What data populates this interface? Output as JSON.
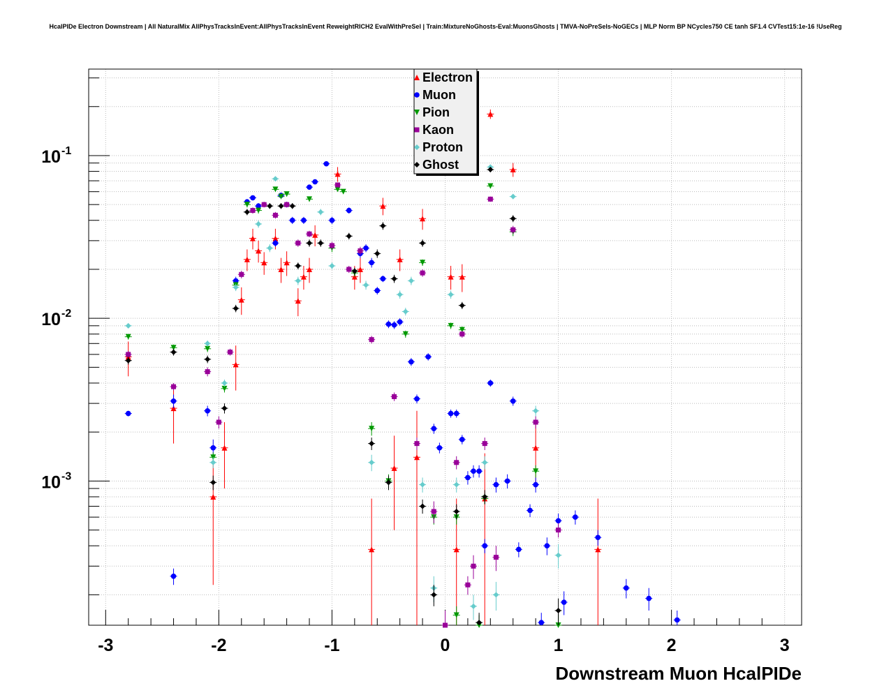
{
  "chart_data": {
    "type": "scatter",
    "title": "HcalPIDe Electron Downstream | All NaturalMix AllPhysTracksInEvent:AllPhysTracksInEvent ReweightRICH2 EvalWithPreSel | Train:MixtureNoGhosts-Eval:MuonsGhosts | TMVA-NoPreSels-NoGECs | MLP Norm BP NCycles750 CE tanh SF1.4 CVTest15:1e-16 !UseReg",
    "xlabel": "Downstream Muon HcalPIDe",
    "ylabel": "",
    "xlim": [
      -3.15,
      3.15
    ],
    "ylim": [
      0.00013,
      0.34
    ],
    "y_scale": "log",
    "grid": true,
    "legend_position": "top-center",
    "x_ticks": [
      "-3",
      "-2",
      "-1",
      "0",
      "1",
      "2",
      "3"
    ],
    "y_ticks": [
      "10^{-3}",
      "10^{-2}",
      "10^{-1}"
    ],
    "series": [
      {
        "name": "Electron",
        "color": "#ff0000",
        "marker": "triangle-up",
        "points": [
          [
            -2.8,
            0.0058,
            0.0014
          ],
          [
            -2.4,
            0.0028,
            0.0011
          ],
          [
            -2.05,
            0.0008,
            0.00057
          ],
          [
            -1.95,
            0.0016,
            0.0007
          ],
          [
            -1.85,
            0.0052,
            0.0016
          ],
          [
            -1.8,
            0.013,
            0.0025
          ],
          [
            -1.75,
            0.023,
            0.0035
          ],
          [
            -1.7,
            0.031,
            0.0045
          ],
          [
            -1.65,
            0.026,
            0.004
          ],
          [
            -1.6,
            0.022,
            0.0035
          ],
          [
            -1.5,
            0.031,
            0.0045
          ],
          [
            -1.45,
            0.02,
            0.0035
          ],
          [
            -1.4,
            0.022,
            0.0038
          ],
          [
            -1.3,
            0.0128,
            0.0025
          ],
          [
            -1.25,
            0.018,
            0.003
          ],
          [
            -1.2,
            0.02,
            0.0035
          ],
          [
            -1.15,
            0.0325,
            0.0048
          ],
          [
            -0.95,
            0.077,
            0.008
          ],
          [
            -0.8,
            0.018,
            0.003
          ],
          [
            -0.75,
            0.02,
            0.0035
          ],
          [
            -0.65,
            0.00038,
            0.0004
          ],
          [
            -0.55,
            0.049,
            0.006
          ],
          [
            -0.45,
            0.0012,
            0.0007
          ],
          [
            -0.4,
            0.023,
            0.0035
          ],
          [
            -0.25,
            0.0014,
            0.0013
          ],
          [
            -0.2,
            0.041,
            0.006
          ],
          [
            0.05,
            0.018,
            0.003
          ],
          [
            0.1,
            0.00038,
            0.0004
          ],
          [
            0.15,
            0.018,
            0.0035
          ],
          [
            0.35,
            0.00078,
            0.0007
          ],
          [
            0.4,
            0.18,
            0.012
          ],
          [
            0.6,
            0.082,
            0.008
          ],
          [
            0.8,
            0.0016,
            0.0007
          ],
          [
            1.35,
            0.00038,
            0.0004
          ]
        ]
      },
      {
        "name": "Muon",
        "color": "#0000ff",
        "marker": "circle",
        "points": [
          [
            -2.8,
            0.0026,
            0.0001
          ],
          [
            -2.4,
            0.00026,
            3e-05
          ],
          [
            -2.4,
            0.0031,
            0.0003
          ],
          [
            -2.1,
            0.0027,
            0.0002
          ],
          [
            -2.05,
            0.0016,
            0.0002
          ],
          [
            -1.85,
            0.017,
            0.001
          ],
          [
            -1.75,
            0.052,
            0.002
          ],
          [
            -1.7,
            0.055,
            0.002
          ],
          [
            -1.65,
            0.049,
            0.002
          ],
          [
            -1.5,
            0.029,
            0.0015
          ],
          [
            -1.45,
            0.057,
            0.002
          ],
          [
            -1.4,
            0.05,
            0.002
          ],
          [
            -1.35,
            0.04,
            0.002
          ],
          [
            -1.25,
            0.04,
            0.002
          ],
          [
            -1.2,
            0.064,
            0.002
          ],
          [
            -1.15,
            0.069,
            0.002
          ],
          [
            -1.05,
            0.089,
            0.003
          ],
          [
            -1.0,
            0.04,
            0.002
          ],
          [
            -0.85,
            0.046,
            0.002
          ],
          [
            -0.75,
            0.025,
            0.0015
          ],
          [
            -0.7,
            0.027,
            0.0015
          ],
          [
            -0.65,
            0.022,
            0.0015
          ],
          [
            -0.6,
            0.0148,
            0.0008
          ],
          [
            -0.55,
            0.0175,
            0.0008
          ],
          [
            -0.5,
            0.0092,
            0.0005
          ],
          [
            -0.45,
            0.0091,
            0.0005
          ],
          [
            -0.4,
            0.0095,
            0.0005
          ],
          [
            -0.3,
            0.0054,
            0.0003
          ],
          [
            -0.25,
            0.0032,
            0.0002
          ],
          [
            -0.15,
            0.0058,
            0.0003
          ],
          [
            -0.1,
            0.0021,
            0.00015
          ],
          [
            -0.05,
            0.0016,
            0.00012
          ],
          [
            0.05,
            0.0026,
            0.00015
          ],
          [
            0.1,
            0.0026,
            0.00015
          ],
          [
            0.15,
            0.0018,
            0.00012
          ],
          [
            0.2,
            0.00105,
            0.0001
          ],
          [
            0.25,
            0.00115,
            0.0001
          ],
          [
            0.3,
            0.00115,
            0.0001
          ],
          [
            0.35,
            0.0004,
            4e-05
          ],
          [
            0.4,
            0.004,
            0.0002
          ],
          [
            0.45,
            0.00095,
            0.0001
          ],
          [
            0.55,
            0.001,
            0.0001
          ],
          [
            0.6,
            0.0031,
            0.0002
          ],
          [
            0.65,
            0.00038,
            4e-05
          ],
          [
            0.75,
            0.00066,
            6e-05
          ],
          [
            0.8,
            0.00095,
            0.0001
          ],
          [
            0.85,
            0.000135,
            2e-05
          ],
          [
            0.9,
            0.0004,
            5e-05
          ],
          [
            1.0,
            0.00057,
            6e-05
          ],
          [
            1.05,
            0.00018,
            3e-05
          ],
          [
            1.15,
            0.0006,
            6e-05
          ],
          [
            1.35,
            0.00045,
            5e-05
          ],
          [
            1.6,
            0.00022,
            3e-05
          ],
          [
            1.8,
            0.00019,
            3e-05
          ],
          [
            2.05,
            0.00014,
            2e-05
          ]
        ]
      },
      {
        "name": "Pion",
        "color": "#009900",
        "marker": "triangle-down",
        "points": [
          [
            -2.8,
            0.0077,
            0.0003
          ],
          [
            -2.4,
            0.0066,
            0.0003
          ],
          [
            -2.1,
            0.0065,
            0.0003
          ],
          [
            -2.05,
            0.0014,
            0.0001
          ],
          [
            -1.95,
            0.0037,
            0.0002
          ],
          [
            -1.85,
            0.016,
            0.0008
          ],
          [
            -1.75,
            0.05,
            0.002
          ],
          [
            -1.65,
            0.046,
            0.002
          ],
          [
            -1.5,
            0.062,
            0.002
          ],
          [
            -1.45,
            0.056,
            0.002
          ],
          [
            -1.4,
            0.058,
            0.002
          ],
          [
            -1.2,
            0.054,
            0.002
          ],
          [
            -1.0,
            0.027,
            0.0015
          ],
          [
            -0.95,
            0.062,
            0.002
          ],
          [
            -0.9,
            0.06,
            0.002
          ],
          [
            -0.8,
            0.019,
            0.001
          ],
          [
            -0.65,
            0.0021,
            0.0002
          ],
          [
            -0.5,
            0.001,
            0.0001
          ],
          [
            -0.35,
            0.008,
            0.0004
          ],
          [
            -0.2,
            0.022,
            0.001
          ],
          [
            -0.1,
            0.0006,
            6e-05
          ],
          [
            0.05,
            0.009,
            0.0004
          ],
          [
            0.1,
            0.0006,
            6e-05
          ],
          [
            0.1,
            0.00015,
            2e-05
          ],
          [
            0.15,
            0.0085,
            0.0004
          ],
          [
            0.3,
            0.00013,
            2e-05
          ],
          [
            0.35,
            0.00078,
            6e-05
          ],
          [
            0.4,
            0.065,
            0.002
          ],
          [
            0.6,
            0.034,
            0.002
          ],
          [
            0.8,
            0.00115,
            0.0001
          ],
          [
            1.0,
            0.00013,
            2e-05
          ]
        ]
      },
      {
        "name": "Kaon",
        "color": "#990099",
        "marker": "square",
        "points": [
          [
            -2.8,
            0.006,
            0.0003
          ],
          [
            -2.4,
            0.0038,
            0.0002
          ],
          [
            -2.1,
            0.0047,
            0.0003
          ],
          [
            -2.0,
            0.0023,
            0.0002
          ],
          [
            -1.9,
            0.0062,
            0.0003
          ],
          [
            -1.8,
            0.0186,
            0.001
          ],
          [
            -1.7,
            0.046,
            0.002
          ],
          [
            -1.6,
            0.05,
            0.002
          ],
          [
            -1.5,
            0.043,
            0.002
          ],
          [
            -1.4,
            0.05,
            0.002
          ],
          [
            -1.3,
            0.029,
            0.0015
          ],
          [
            -1.2,
            0.033,
            0.0015
          ],
          [
            -1.0,
            0.028,
            0.0015
          ],
          [
            -0.95,
            0.066,
            0.002
          ],
          [
            -0.85,
            0.02,
            0.001
          ],
          [
            -0.75,
            0.026,
            0.0015
          ],
          [
            -0.65,
            0.0074,
            0.0004
          ],
          [
            -0.45,
            0.0033,
            0.0002
          ],
          [
            -0.25,
            0.0017,
            0.00015
          ],
          [
            -0.2,
            0.019,
            0.001
          ],
          [
            -0.1,
            0.00065,
            0.0001
          ],
          [
            0.0,
            0.00013,
            3e-05
          ],
          [
            0.1,
            0.0013,
            0.00012
          ],
          [
            0.15,
            0.008,
            0.0004
          ],
          [
            0.2,
            0.00023,
            3e-05
          ],
          [
            0.25,
            0.0003,
            5e-05
          ],
          [
            0.35,
            0.0017,
            0.00015
          ],
          [
            0.45,
            0.00034,
            6e-05
          ],
          [
            0.4,
            0.054,
            0.002
          ],
          [
            0.6,
            0.035,
            0.002
          ],
          [
            0.8,
            0.0023,
            0.0002
          ],
          [
            1.0,
            0.0005,
            5e-05
          ]
        ]
      },
      {
        "name": "Proton",
        "color": "#66cccc",
        "marker": "diamond",
        "points": [
          [
            -2.8,
            0.009,
            0.0003
          ],
          [
            -2.1,
            0.007,
            0.0003
          ],
          [
            -2.05,
            0.0013,
            0.0001
          ],
          [
            -1.95,
            0.004,
            0.0002
          ],
          [
            -1.85,
            0.0155,
            0.0008
          ],
          [
            -1.65,
            0.038,
            0.002
          ],
          [
            -1.55,
            0.027,
            0.0015
          ],
          [
            -1.5,
            0.072,
            0.002
          ],
          [
            -1.3,
            0.017,
            0.001
          ],
          [
            -1.1,
            0.045,
            0.002
          ],
          [
            -1.0,
            0.021,
            0.001
          ],
          [
            -0.7,
            0.016,
            0.001
          ],
          [
            -0.65,
            0.0013,
            0.00015
          ],
          [
            -0.4,
            0.014,
            0.0008
          ],
          [
            -0.35,
            0.011,
            0.0006
          ],
          [
            -0.3,
            0.017,
            0.001
          ],
          [
            -0.2,
            0.00095,
            0.0001
          ],
          [
            -0.1,
            0.00022,
            4e-05
          ],
          [
            0.05,
            0.014,
            0.0008
          ],
          [
            0.1,
            0.00095,
            0.0001
          ],
          [
            0.25,
            0.00017,
            3e-05
          ],
          [
            0.35,
            0.0013,
            0.00012
          ],
          [
            0.45,
            0.0002,
            4e-05
          ],
          [
            0.4,
            0.085,
            0.003
          ],
          [
            0.6,
            0.056,
            0.002
          ],
          [
            0.8,
            0.0027,
            0.0002
          ],
          [
            1.0,
            0.00035,
            6e-05
          ]
        ]
      },
      {
        "name": "Ghost",
        "color": "#000000",
        "marker": "diamond",
        "points": [
          [
            -2.8,
            0.0055,
            0.0003
          ],
          [
            -2.4,
            0.0062,
            0.0003
          ],
          [
            -2.1,
            0.0056,
            0.0003
          ],
          [
            -2.05,
            0.00098,
            0.0001
          ],
          [
            -1.95,
            0.0028,
            0.0002
          ],
          [
            -1.85,
            0.0115,
            0.0006
          ],
          [
            -1.75,
            0.045,
            0.002
          ],
          [
            -1.55,
            0.049,
            0.002
          ],
          [
            -1.45,
            0.049,
            0.002
          ],
          [
            -1.35,
            0.049,
            0.002
          ],
          [
            -1.3,
            0.021,
            0.001
          ],
          [
            -1.2,
            0.029,
            0.0015
          ],
          [
            -1.1,
            0.029,
            0.0015
          ],
          [
            -0.85,
            0.032,
            0.0015
          ],
          [
            -0.8,
            0.0195,
            0.001
          ],
          [
            -0.6,
            0.025,
            0.0015
          ],
          [
            -0.55,
            0.037,
            0.002
          ],
          [
            -0.45,
            0.0175,
            0.001
          ],
          [
            -0.65,
            0.0017,
            0.00015
          ],
          [
            -0.5,
            0.00098,
            0.0001
          ],
          [
            -0.2,
            0.029,
            0.0015
          ],
          [
            -0.2,
            0.0007,
            7e-05
          ],
          [
            -0.1,
            0.0002,
            3e-05
          ],
          [
            0.1,
            0.00065,
            7e-05
          ],
          [
            0.15,
            0.012,
            0.0006
          ],
          [
            0.3,
            0.000135,
            2e-05
          ],
          [
            0.35,
            0.0008,
            8e-05
          ],
          [
            0.4,
            0.082,
            0.003
          ],
          [
            0.6,
            0.041,
            0.002
          ],
          [
            1.0,
            0.00016,
            3e-05
          ]
        ]
      }
    ]
  }
}
